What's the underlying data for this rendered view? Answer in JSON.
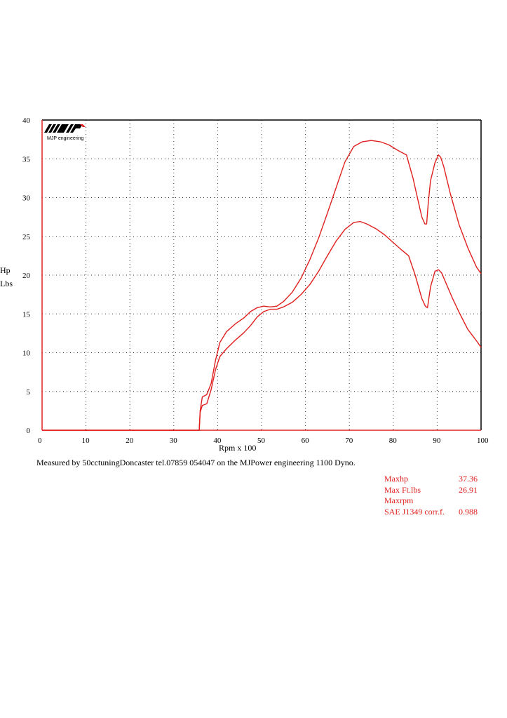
{
  "logo": {
    "name": "MJP",
    "caption": "MJP engineering"
  },
  "chart_data": {
    "type": "line",
    "xlabel": "Rpm x 100",
    "ylabels": [
      "Hp",
      "Lbs"
    ],
    "xlim": [
      0,
      100
    ],
    "ylim": [
      0,
      40
    ],
    "x_ticks": [
      0,
      10,
      20,
      30,
      40,
      50,
      60,
      70,
      80,
      90,
      100
    ],
    "y_ticks": [
      0,
      5,
      10,
      15,
      20,
      25,
      30,
      35,
      40
    ],
    "grid": true,
    "line_color": "#e0201e",
    "series": [
      {
        "name": "Hp",
        "x": [
          0,
          35.8,
          36,
          36.5,
          37.5,
          38.5,
          39.5,
          40.5,
          42,
          44,
          46,
          47.5,
          49,
          50.5,
          52,
          53.5,
          55,
          57,
          59,
          61,
          63,
          65,
          67,
          69,
          71,
          73,
          75,
          77,
          79,
          81,
          83,
          84.5,
          85.5,
          86.5,
          87.2,
          87.6,
          88,
          88.5,
          89.5,
          90.3,
          90.8,
          91.5,
          93,
          95,
          97,
          99,
          100
        ],
        "y": [
          0,
          0,
          2.5,
          4.3,
          4.6,
          6,
          9,
          11.3,
          12.7,
          13.7,
          14.5,
          15.3,
          15.8,
          16,
          15.9,
          16,
          16.6,
          17.8,
          19.6,
          22,
          24.8,
          28,
          31.3,
          34.6,
          36.6,
          37.2,
          37.36,
          37.2,
          36.8,
          36.1,
          35.5,
          32.5,
          30,
          27.5,
          26.6,
          26.6,
          29.5,
          32.2,
          34.5,
          35.5,
          35.2,
          34,
          30.5,
          26.5,
          23.5,
          21,
          20.2
        ]
      },
      {
        "name": "Lbs",
        "x": [
          0,
          35.8,
          36,
          36.5,
          37.5,
          38.5,
          39.5,
          40.5,
          42,
          44,
          46,
          47.5,
          49,
          50.5,
          52,
          53.5,
          55,
          57,
          59,
          61,
          63,
          65,
          67,
          69,
          71,
          72.5,
          74,
          76,
          78,
          80,
          82,
          83.5,
          85,
          86.5,
          87.3,
          87.8,
          88.5,
          89.5,
          90.3,
          91,
          92,
          93.5,
          95,
          97,
          99,
          100
        ],
        "y": [
          0,
          0,
          2.3,
          3.2,
          3.4,
          5.2,
          7.8,
          9.5,
          10.5,
          11.6,
          12.6,
          13.5,
          14.6,
          15.3,
          15.6,
          15.6,
          15.9,
          16.5,
          17.5,
          18.8,
          20.5,
          22.5,
          24.4,
          25.9,
          26.8,
          26.91,
          26.6,
          26,
          25.2,
          24.2,
          23.2,
          22.5,
          20,
          17,
          16,
          15.8,
          18.5,
          20.5,
          20.7,
          20.3,
          19,
          17,
          15.2,
          13,
          11.5,
          10.7
        ]
      }
    ]
  },
  "note": "Measured by 50cctuningDoncaster tel.07859 054047 on the MJPower engineering 1100 Dyno.",
  "stats": [
    {
      "label": "Maxhp",
      "value": "37.36"
    },
    {
      "label": "Max Ft.lbs",
      "value": "26.91"
    },
    {
      "label": "Maxrpm",
      "value": ""
    },
    {
      "label": "SAE J1349 corr.f.",
      "value": "0.988"
    }
  ]
}
